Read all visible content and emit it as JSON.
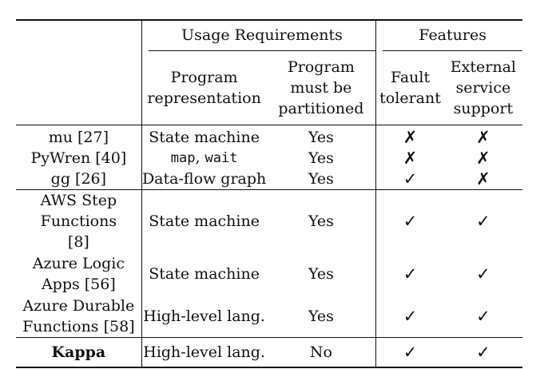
{
  "header": {
    "group_usage": "Usage Requirements",
    "group_features": "Features",
    "col_representation": "Program representation",
    "col_partitioned": "Program must be partitioned",
    "col_fault": "Fault tolerant",
    "col_external": "External service support"
  },
  "rows": [
    {
      "system": "mu [27]",
      "repr": "State machine",
      "part": "Yes",
      "fault": "✗",
      "ext": "✗"
    },
    {
      "system": "PyWren [40]",
      "repr_a": "map",
      "repr_sep": ", ",
      "repr_b": "wait",
      "part": "Yes",
      "fault": "✗",
      "ext": "✗"
    },
    {
      "system": "gg [26]",
      "repr": "Data-flow graph",
      "part": "Yes",
      "fault": "✓",
      "ext": "✗"
    },
    {
      "system": "AWS Step Functions [8]",
      "repr": "State machine",
      "part": "Yes",
      "fault": "✓",
      "ext": "✓"
    },
    {
      "system": "Azure Logic Apps [56]",
      "repr": "State machine",
      "part": "Yes",
      "fault": "✓",
      "ext": "✓"
    },
    {
      "system": "Azure Durable Functions [58]",
      "repr": "High-level lang.",
      "part": "Yes",
      "fault": "✓",
      "ext": "✓"
    },
    {
      "system": "Kappa",
      "repr": "High-level lang.",
      "part": "No",
      "fault": "✓",
      "ext": "✓"
    }
  ]
}
